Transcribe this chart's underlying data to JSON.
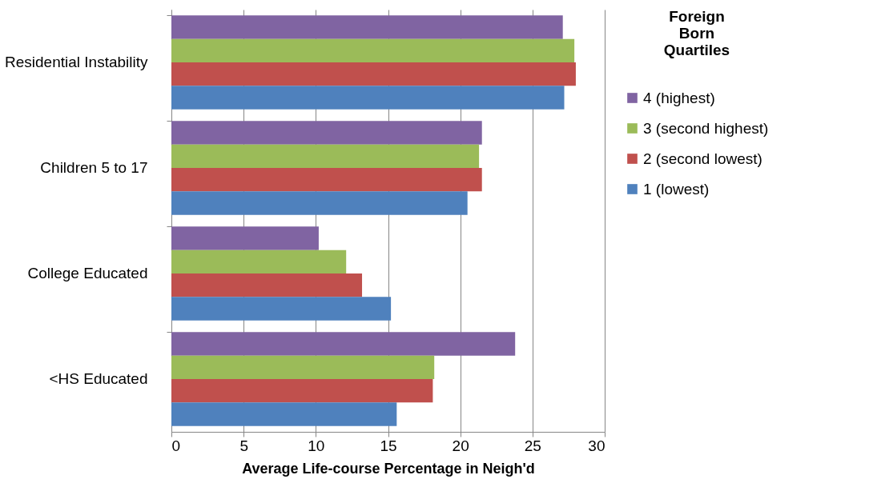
{
  "chart_data": {
    "type": "bar",
    "orientation": "horizontal",
    "categories": [
      "Residential Instability",
      "Children 5 to 17",
      "College Educated",
      "<HS Educated"
    ],
    "series": [
      {
        "name": "4 (highest)",
        "color": "#8064a2",
        "values": [
          27.1,
          21.5,
          10.2,
          23.8
        ]
      },
      {
        "name": "3 (second highest)",
        "color": "#9bbb59",
        "values": [
          27.9,
          21.3,
          12.1,
          18.2
        ]
      },
      {
        "name": "2 (second lowest)",
        "color": "#c0504d",
        "values": [
          28.0,
          21.5,
          13.2,
          18.1
        ]
      },
      {
        "name": "1 (lowest)",
        "color": "#4f81bd",
        "values": [
          27.2,
          20.5,
          15.2,
          15.6
        ]
      }
    ],
    "xlabel": "Average Life-course Percentage in Neigh'd",
    "legend_title": "Foreign Born Quartiles",
    "xlim": [
      0,
      30
    ],
    "xticks": [
      0,
      5,
      10,
      15,
      20,
      25,
      30
    ],
    "grid": "x",
    "legend": "right"
  }
}
